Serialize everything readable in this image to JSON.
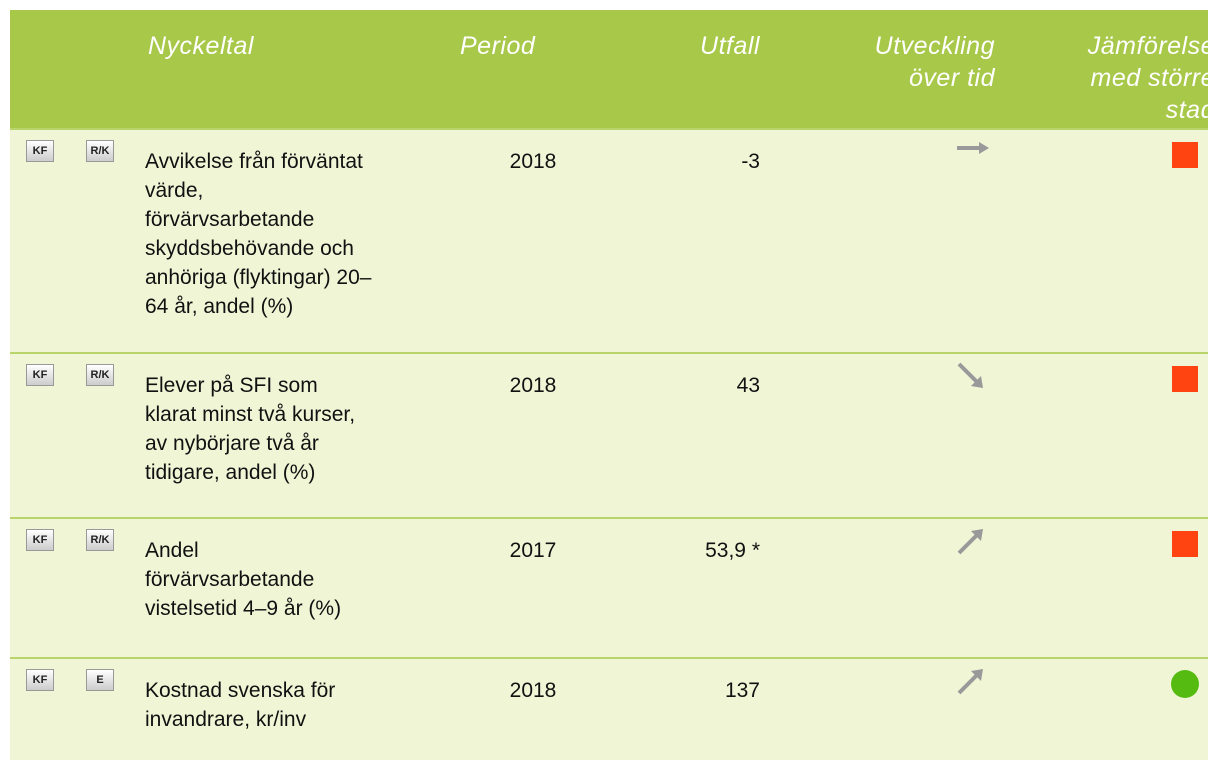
{
  "header": {
    "indicator": "Nyckeltal",
    "period": "Period",
    "outcome": "Utfall",
    "trend": "Utveckling över tid",
    "comparison": "Jämförelse med större stad"
  },
  "rows": [
    {
      "badges": [
        "KF",
        "R/K"
      ],
      "indicator": "Avvikelse från förväntat värde, förvärvsarbetande skyddsbehövande och anhöriga (flyktingar) 20–64 år, andel (%)",
      "period": "2018",
      "outcome": "-3"
    },
    {
      "badges": [
        "KF",
        "R/K"
      ],
      "indicator": "Elever på SFI som klarat minst två kurser, av nybörjare två år tidigare, andel (%)",
      "period": "2018",
      "outcome": "43"
    },
    {
      "badges": [
        "KF",
        "R/K"
      ],
      "indicator": "Andel förvärvsarbetande vistelsetid 4–9 år (%)",
      "period": "2017",
      "outcome": "53,9 *"
    },
    {
      "badges": [
        "KF",
        "E"
      ],
      "indicator": "Kostnad svenska för invandrare, kr/inv",
      "period": "2018",
      "outcome": "137"
    }
  ]
}
